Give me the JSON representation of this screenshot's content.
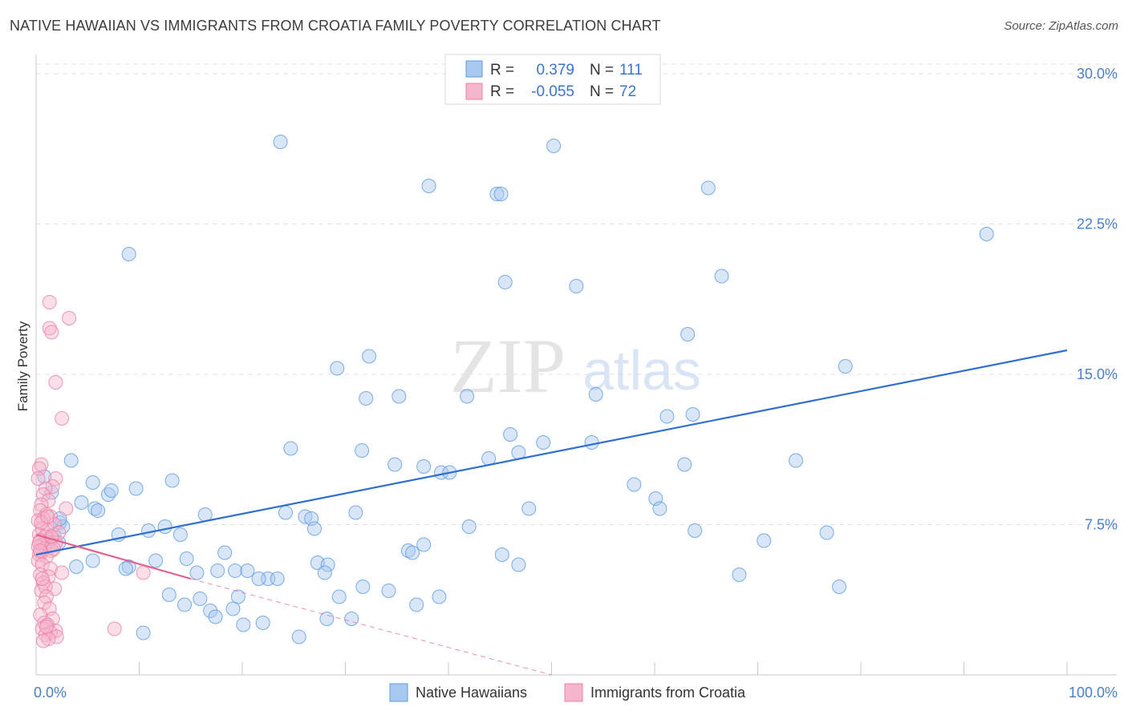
{
  "header": {
    "title": "NATIVE HAWAIIAN VS IMMIGRANTS FROM CROATIA FAMILY POVERTY CORRELATION CHART",
    "source": "Source: ZipAtlas.com"
  },
  "watermark": {
    "zip": "ZIP",
    "atlas": "atlas"
  },
  "colors": {
    "blue": "#5b9be0",
    "blue_fill": "#a9c8ef",
    "blue_line": "#2f6fcf",
    "pink": "#ee7fa6",
    "pink_fill": "#f5b6cb",
    "pink_line": "#e45f8d",
    "tick_text": "#4a7fc9",
    "grid": "#e2e2e2"
  },
  "legend": {
    "rows": [
      {
        "r_label": "R =",
        "r_value": "0.379",
        "n_label": "N =",
        "n_value": "111",
        "series": "blue"
      },
      {
        "r_label": "R =",
        "r_value": "-0.055",
        "n_label": "N =",
        "n_value": "72",
        "series": "pink"
      }
    ]
  },
  "bottom_legend": [
    {
      "label": "Native Hawaiians",
      "series": "blue"
    },
    {
      "label": "Immigrants from Croatia",
      "series": "pink"
    }
  ],
  "chart_data": {
    "type": "scatter",
    "title": "NATIVE HAWAIIAN VS IMMIGRANTS FROM CROATIA FAMILY POVERTY CORRELATION CHART",
    "xlabel": "",
    "ylabel": "Family Poverty",
    "xlim": [
      0,
      100
    ],
    "ylim": [
      0,
      30.8
    ],
    "x_tick_labels": [
      "0.0%",
      "100.0%"
    ],
    "y_ticks": [
      7.5,
      15.0,
      22.5,
      30.0
    ],
    "y_tick_labels": [
      "7.5%",
      "15.0%",
      "22.5%",
      "30.0%"
    ],
    "grid": true,
    "series": [
      {
        "name": "Native Hawaiians",
        "color": "blue",
        "R": 0.379,
        "N": 111,
        "trend": {
          "x0": 0.0,
          "y0": 6.0,
          "x1": 100.0,
          "y1": 16.2
        },
        "points": [
          [
            23.7,
            26.6
          ],
          [
            50.2,
            26.4
          ],
          [
            38.1,
            24.4
          ],
          [
            44.7,
            24.0
          ],
          [
            45.1,
            24.0
          ],
          [
            65.2,
            24.3
          ],
          [
            92.2,
            22.0
          ],
          [
            9.0,
            21.0
          ],
          [
            45.5,
            19.6
          ],
          [
            52.4,
            19.4
          ],
          [
            66.5,
            19.9
          ],
          [
            63.2,
            17.0
          ],
          [
            32.3,
            15.9
          ],
          [
            29.2,
            15.3
          ],
          [
            78.5,
            15.4
          ],
          [
            32.0,
            13.8
          ],
          [
            35.2,
            13.9
          ],
          [
            41.8,
            13.9
          ],
          [
            54.3,
            14.0
          ],
          [
            61.2,
            12.9
          ],
          [
            63.7,
            13.0
          ],
          [
            46.0,
            12.0
          ],
          [
            53.9,
            11.6
          ],
          [
            49.2,
            11.6
          ],
          [
            46.8,
            11.1
          ],
          [
            24.7,
            11.3
          ],
          [
            31.6,
            11.2
          ],
          [
            43.9,
            10.8
          ],
          [
            34.8,
            10.5
          ],
          [
            37.6,
            10.4
          ],
          [
            39.3,
            10.1
          ],
          [
            40.1,
            10.1
          ],
          [
            73.7,
            10.7
          ],
          [
            62.9,
            10.5
          ],
          [
            3.4,
            10.7
          ],
          [
            13.2,
            9.7
          ],
          [
            5.5,
            9.6
          ],
          [
            9.7,
            9.3
          ],
          [
            7.0,
            9.0
          ],
          [
            7.3,
            9.2
          ],
          [
            58.0,
            9.5
          ],
          [
            60.1,
            8.8
          ],
          [
            60.5,
            8.3
          ],
          [
            47.8,
            8.3
          ],
          [
            31.0,
            8.1
          ],
          [
            24.2,
            8.1
          ],
          [
            16.4,
            8.0
          ],
          [
            4.4,
            8.6
          ],
          [
            5.7,
            8.3
          ],
          [
            6.0,
            8.2
          ],
          [
            26.1,
            7.9
          ],
          [
            26.7,
            7.8
          ],
          [
            2.3,
            7.6
          ],
          [
            2.6,
            7.4
          ],
          [
            12.5,
            7.4
          ],
          [
            27.0,
            7.3
          ],
          [
            42.0,
            7.4
          ],
          [
            10.9,
            7.2
          ],
          [
            8.0,
            7.0
          ],
          [
            14.0,
            7.0
          ],
          [
            63.9,
            7.2
          ],
          [
            76.7,
            7.1
          ],
          [
            70.6,
            6.7
          ],
          [
            37.6,
            6.5
          ],
          [
            2.3,
            7.8
          ],
          [
            36.1,
            6.2
          ],
          [
            36.5,
            6.1
          ],
          [
            18.3,
            6.1
          ],
          [
            45.2,
            6.0
          ],
          [
            5.5,
            5.7
          ],
          [
            11.6,
            5.7
          ],
          [
            14.6,
            5.8
          ],
          [
            27.3,
            5.6
          ],
          [
            28.3,
            5.5
          ],
          [
            9.0,
            5.4
          ],
          [
            3.9,
            5.4
          ],
          [
            8.7,
            5.3
          ],
          [
            17.6,
            5.2
          ],
          [
            19.3,
            5.2
          ],
          [
            20.5,
            5.2
          ],
          [
            15.6,
            5.1
          ],
          [
            28.0,
            5.1
          ],
          [
            46.8,
            5.5
          ],
          [
            68.2,
            5.0
          ],
          [
            22.5,
            4.8
          ],
          [
            23.4,
            4.8
          ],
          [
            21.6,
            4.8
          ],
          [
            31.7,
            4.4
          ],
          [
            34.2,
            4.2
          ],
          [
            12.9,
            4.0
          ],
          [
            29.4,
            3.9
          ],
          [
            39.1,
            3.9
          ],
          [
            77.9,
            4.4
          ],
          [
            15.9,
            3.8
          ],
          [
            19.6,
            3.9
          ],
          [
            14.4,
            3.5
          ],
          [
            36.9,
            3.5
          ],
          [
            16.9,
            3.2
          ],
          [
            19.1,
            3.3
          ],
          [
            17.4,
            2.9
          ],
          [
            22.0,
            2.6
          ],
          [
            28.2,
            2.8
          ],
          [
            30.6,
            2.8
          ],
          [
            20.1,
            2.5
          ],
          [
            10.4,
            2.1
          ],
          [
            25.5,
            1.9
          ],
          [
            1.7,
            7.0
          ],
          [
            2.2,
            6.6
          ],
          [
            1.2,
            6.7
          ],
          [
            0.8,
            9.9
          ],
          [
            1.5,
            9.1
          ]
        ]
      },
      {
        "name": "Immigrants from Croatia",
        "color": "pink",
        "R": -0.055,
        "N": 72,
        "trend": {
          "x0": 0.0,
          "y0": 7.0,
          "x1": 15.0,
          "y1": 4.8
        },
        "trend_extension": {
          "x0": 15.0,
          "y0": 4.8,
          "x1": 50.0,
          "y1": 0.0
        },
        "points": [
          [
            1.3,
            18.6
          ],
          [
            3.2,
            17.8
          ],
          [
            1.3,
            17.3
          ],
          [
            1.5,
            17.1
          ],
          [
            1.9,
            14.6
          ],
          [
            2.5,
            12.8
          ],
          [
            0.5,
            10.5
          ],
          [
            0.3,
            10.3
          ],
          [
            1.9,
            9.8
          ],
          [
            1.6,
            9.4
          ],
          [
            0.9,
            9.3
          ],
          [
            0.7,
            9.0
          ],
          [
            1.2,
            8.7
          ],
          [
            0.5,
            8.5
          ],
          [
            2.9,
            8.3
          ],
          [
            0.4,
            8.2
          ],
          [
            1.0,
            8.0
          ],
          [
            1.4,
            7.9
          ],
          [
            0.7,
            7.8
          ],
          [
            0.2,
            7.7
          ],
          [
            1.8,
            7.5
          ],
          [
            0.6,
            7.3
          ],
          [
            1.1,
            7.2
          ],
          [
            0.3,
            7.0
          ],
          [
            0.9,
            6.9
          ],
          [
            1.5,
            6.8
          ],
          [
            0.4,
            6.7
          ],
          [
            1.2,
            6.6
          ],
          [
            0.7,
            6.5
          ],
          [
            1.9,
            6.6
          ],
          [
            0.2,
            6.4
          ],
          [
            0.8,
            6.3
          ],
          [
            1.5,
            6.2
          ],
          [
            0.5,
            6.1
          ],
          [
            0.3,
            6.0
          ],
          [
            1.0,
            5.9
          ],
          [
            0.2,
            5.7
          ],
          [
            0.6,
            5.5
          ],
          [
            1.4,
            5.3
          ],
          [
            2.5,
            5.1
          ],
          [
            0.4,
            5.0
          ],
          [
            1.2,
            4.9
          ],
          [
            0.7,
            4.6
          ],
          [
            1.8,
            4.3
          ],
          [
            0.5,
            4.2
          ],
          [
            0.9,
            4.4
          ],
          [
            1.0,
            3.9
          ],
          [
            0.8,
            3.6
          ],
          [
            1.3,
            3.3
          ],
          [
            0.4,
            3.0
          ],
          [
            1.6,
            2.8
          ],
          [
            0.8,
            2.6
          ],
          [
            1.1,
            2.5
          ],
          [
            0.6,
            2.3
          ],
          [
            1.9,
            2.2
          ],
          [
            1.4,
            2.1
          ],
          [
            0.9,
            2.0
          ],
          [
            2.0,
            1.9
          ],
          [
            1.2,
            1.8
          ],
          [
            0.7,
            1.7
          ],
          [
            7.6,
            2.3
          ],
          [
            10.4,
            5.1
          ],
          [
            0.3,
            6.6
          ],
          [
            0.5,
            7.6
          ],
          [
            1.7,
            6.3
          ],
          [
            1.1,
            7.9
          ],
          [
            0.2,
            9.8
          ],
          [
            2.2,
            7.1
          ],
          [
            0.6,
            4.8
          ],
          [
            1.0,
            2.4
          ],
          [
            1.5,
            6.9
          ],
          [
            0.4,
            6.2
          ]
        ]
      }
    ]
  }
}
